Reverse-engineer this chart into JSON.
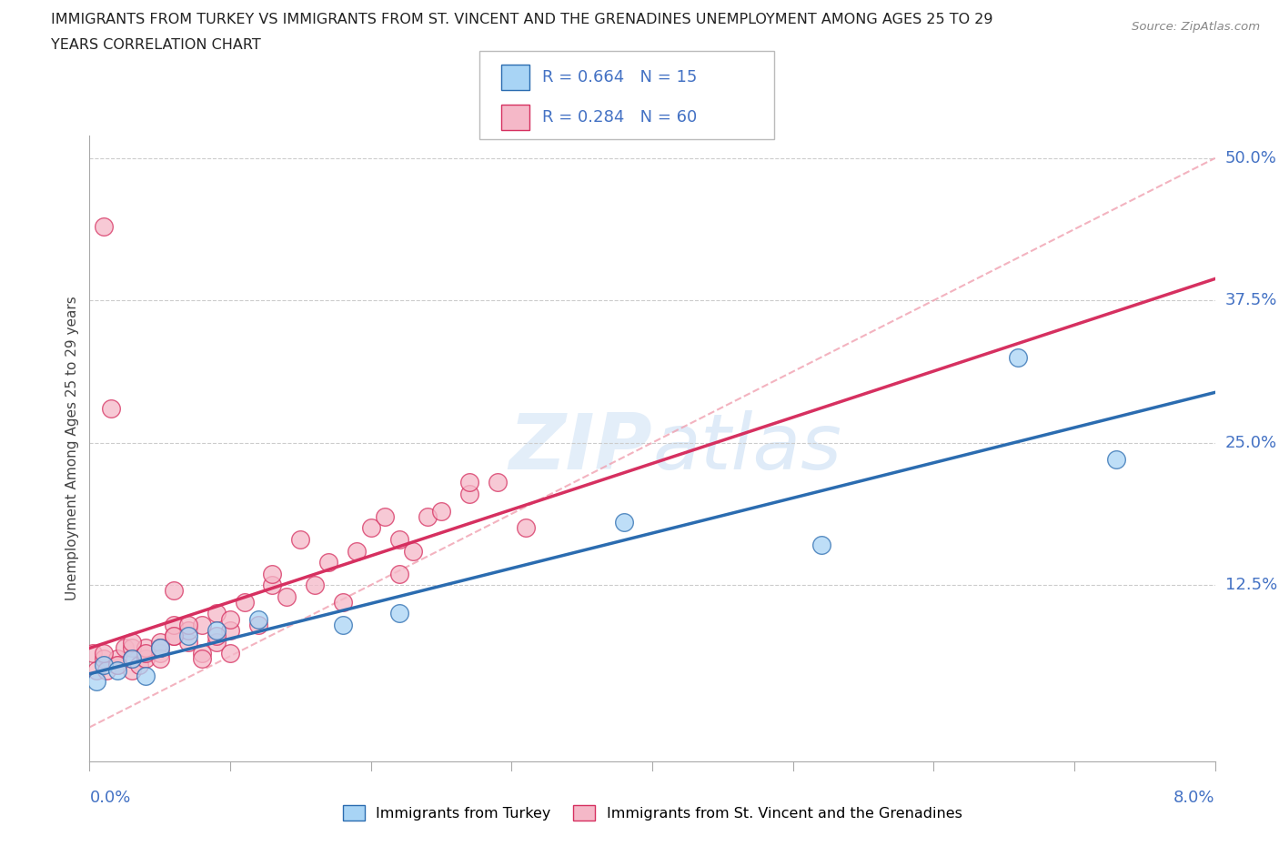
{
  "title_line1": "IMMIGRANTS FROM TURKEY VS IMMIGRANTS FROM ST. VINCENT AND THE GRENADINES UNEMPLOYMENT AMONG AGES 25 TO 29",
  "title_line2": "YEARS CORRELATION CHART",
  "source": "Source: ZipAtlas.com",
  "ylabel": "Unemployment Among Ages 25 to 29 years",
  "yticks": [
    0.0,
    0.125,
    0.25,
    0.375,
    0.5
  ],
  "ytick_labels": [
    "",
    "12.5%",
    "25.0%",
    "37.5%",
    "50.0%"
  ],
  "xlim": [
    0.0,
    0.08
  ],
  "ylim": [
    -0.03,
    0.52
  ],
  "r_turkey": 0.664,
  "n_turkey": 15,
  "r_svg": 0.284,
  "n_svg": 60,
  "legend1_label": "Immigrants from Turkey",
  "legend2_label": "Immigrants from St. Vincent and the Grenadines",
  "color_turkey": "#a8d4f5",
  "color_svg": "#f5b8c8",
  "trendline_turkey_color": "#2b6cb0",
  "trendline_svg_color": "#d63060",
  "refline_color": "#f0a0b0",
  "scatter_turkey_x": [
    0.0005,
    0.001,
    0.002,
    0.003,
    0.004,
    0.005,
    0.007,
    0.009,
    0.012,
    0.018,
    0.022,
    0.038,
    0.052,
    0.066,
    0.073
  ],
  "scatter_turkey_y": [
    0.04,
    0.055,
    0.05,
    0.06,
    0.045,
    0.07,
    0.08,
    0.085,
    0.095,
    0.09,
    0.1,
    0.18,
    0.16,
    0.325,
    0.235
  ],
  "scatter_svg_x": [
    0.0002,
    0.0005,
    0.001,
    0.001,
    0.0012,
    0.0015,
    0.002,
    0.002,
    0.0025,
    0.003,
    0.003,
    0.003,
    0.0035,
    0.004,
    0.004,
    0.005,
    0.005,
    0.005,
    0.006,
    0.006,
    0.006,
    0.007,
    0.007,
    0.008,
    0.008,
    0.009,
    0.009,
    0.01,
    0.01,
    0.011,
    0.012,
    0.013,
    0.013,
    0.014,
    0.015,
    0.016,
    0.017,
    0.018,
    0.019,
    0.02,
    0.021,
    0.022,
    0.022,
    0.023,
    0.024,
    0.025,
    0.027,
    0.027,
    0.029,
    0.031,
    0.001,
    0.002,
    0.003,
    0.004,
    0.005,
    0.006,
    0.007,
    0.008,
    0.009,
    0.01
  ],
  "scatter_svg_y": [
    0.065,
    0.05,
    0.44,
    0.06,
    0.05,
    0.28,
    0.055,
    0.06,
    0.07,
    0.05,
    0.07,
    0.06,
    0.055,
    0.06,
    0.07,
    0.065,
    0.075,
    0.06,
    0.08,
    0.09,
    0.12,
    0.075,
    0.085,
    0.065,
    0.09,
    0.075,
    0.1,
    0.085,
    0.095,
    0.11,
    0.09,
    0.125,
    0.135,
    0.115,
    0.165,
    0.125,
    0.145,
    0.11,
    0.155,
    0.175,
    0.185,
    0.135,
    0.165,
    0.155,
    0.185,
    0.19,
    0.205,
    0.215,
    0.215,
    0.175,
    0.065,
    0.055,
    0.075,
    0.065,
    0.07,
    0.08,
    0.09,
    0.06,
    0.08,
    0.065
  ],
  "watermark_zip": "ZIP",
  "watermark_atlas": "atlas",
  "background_color": "#ffffff",
  "grid_color": "#cccccc",
  "axis_color": "#aaaaaa",
  "label_color": "#4472c4",
  "title_color": "#222222",
  "scatter_size": 200
}
